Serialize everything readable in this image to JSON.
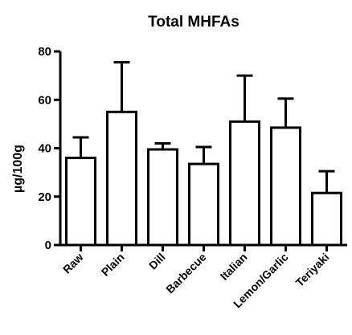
{
  "chart_data": {
    "type": "bar",
    "title": "Total MHFAs",
    "xlabel": "",
    "ylabel": "µg/100g",
    "ylim": [
      0,
      80
    ],
    "yticks": [
      0,
      20,
      40,
      60,
      80
    ],
    "categories": [
      "Raw",
      "Plain",
      "Dill",
      "Barbecue",
      "Italian",
      "Lemon/Garlic",
      "Teriyaki"
    ],
    "values": [
      36,
      55,
      39.5,
      33.5,
      51,
      48.5,
      21.5
    ],
    "error_upper": [
      8.5,
      20.5,
      2.5,
      7,
      19,
      12,
      9
    ],
    "error_bars": "upper",
    "grid": false,
    "legend": "none",
    "bar_fill": "#ffffff",
    "bar_stroke": "#000000"
  }
}
